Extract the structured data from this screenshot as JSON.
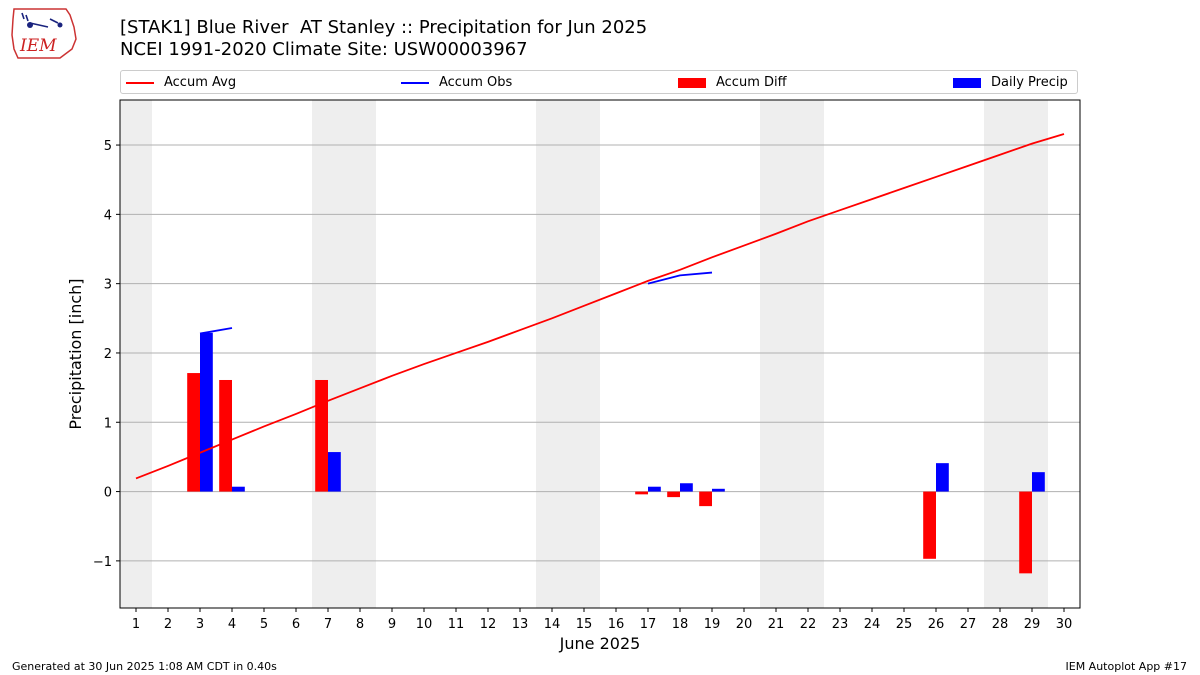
{
  "title_line1": "[STAK1] Blue River  AT Stanley :: Precipitation for Jun 2025",
  "title_line2": "NCEI 1991-2020 Climate Site: USW00003967",
  "logo_text": "IEM",
  "footer_left": "Generated at 30 Jun 2025 1:08 AM CDT in 0.40s",
  "footer_right": "IEM Autoplot App #17",
  "colors": {
    "avg": "#ff0000",
    "obs": "#0000ff",
    "diff": "#ff0000",
    "daily": "#0000ff",
    "weekend": "#eeeeee",
    "grid": "#b0b0b0"
  },
  "chart_data": {
    "type": "bar",
    "xlabel": "June 2025",
    "ylabel": "Precipitation [inch]",
    "xlim": [
      0.5,
      30.5
    ],
    "ylim": [
      -1.68,
      5.65
    ],
    "yticks": [
      -1,
      0,
      1,
      2,
      3,
      4,
      5
    ],
    "yticklabels": [
      "−1",
      "0",
      "1",
      "2",
      "3",
      "4",
      "5"
    ],
    "xticks": [
      1,
      2,
      3,
      4,
      5,
      6,
      7,
      8,
      9,
      10,
      11,
      12,
      13,
      14,
      15,
      16,
      17,
      18,
      19,
      20,
      21,
      22,
      23,
      24,
      25,
      26,
      27,
      28,
      29,
      30
    ],
    "grid": "horizontal",
    "legend_placement": "top",
    "weekend_shading": [
      [
        0.5,
        1.5
      ],
      [
        6.5,
        8.5
      ],
      [
        13.5,
        15.5
      ],
      [
        20.5,
        22.5
      ],
      [
        27.5,
        29.5
      ]
    ],
    "series": [
      {
        "name": "Accum Avg",
        "kind": "line",
        "x": [
          1,
          2,
          3,
          4,
          5,
          6,
          7,
          8,
          9,
          10,
          11,
          12,
          13,
          14,
          15,
          16,
          17,
          18,
          19,
          20,
          21,
          22,
          23,
          24,
          25,
          26,
          27,
          28,
          29,
          30
        ],
        "values": [
          0.19,
          0.37,
          0.56,
          0.75,
          0.94,
          1.12,
          1.31,
          1.49,
          1.67,
          1.84,
          2.0,
          2.16,
          2.33,
          2.5,
          2.68,
          2.86,
          3.04,
          3.2,
          3.38,
          3.55,
          3.72,
          3.9,
          4.06,
          4.22,
          4.38,
          4.54,
          4.7,
          4.86,
          5.02,
          5.16
        ]
      },
      {
        "name": "Accum Obs",
        "kind": "line",
        "segments": [
          {
            "x": [
              3,
              4
            ],
            "values": [
              2.28,
              2.36
            ]
          },
          {
            "x": [
              17,
              18,
              19
            ],
            "values": [
              3.0,
              3.12,
              3.16
            ]
          }
        ]
      },
      {
        "name": "Accum Diff",
        "kind": "bar",
        "x": [
          3,
          4,
          7,
          17,
          18,
          19,
          26,
          29
        ],
        "values": [
          1.71,
          1.61,
          1.61,
          -0.04,
          -0.08,
          -0.21,
          -0.97,
          -1.18
        ]
      },
      {
        "name": "Daily Precip",
        "kind": "bar",
        "x": [
          3,
          4,
          7,
          17,
          18,
          19,
          26,
          29
        ],
        "values": [
          2.29,
          0.07,
          0.57,
          0.07,
          0.12,
          0.04,
          0.41,
          0.28
        ]
      }
    ]
  }
}
